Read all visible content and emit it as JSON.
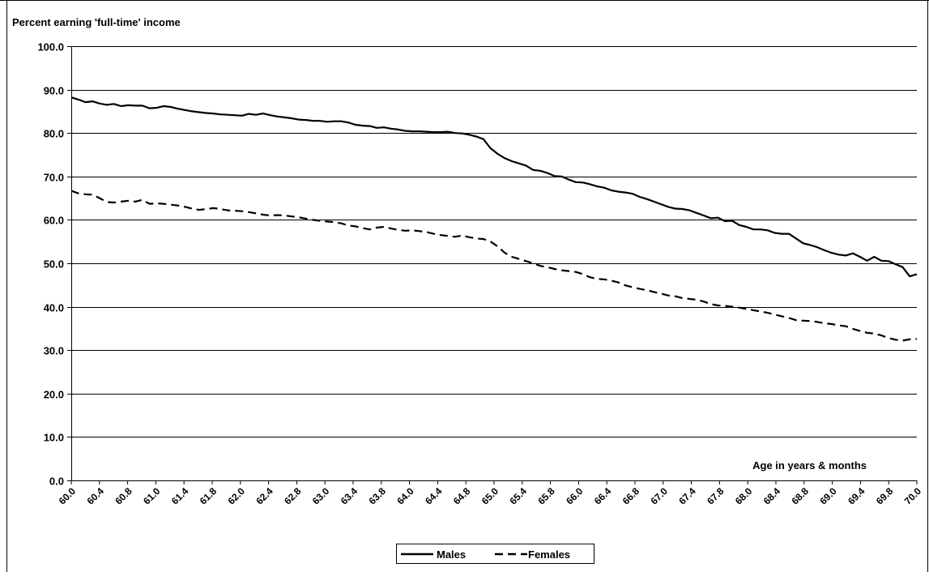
{
  "chart_data": {
    "type": "line",
    "ylabel": "Percent earning 'full-time' income",
    "xlabel": "Age in years & months",
    "ylim": [
      0,
      100
    ],
    "y_ticks": [
      "0.0",
      "10.0",
      "20.0",
      "30.0",
      "40.0",
      "50.0",
      "60.0",
      "70.0",
      "80.0",
      "90.0",
      "100.0"
    ],
    "x_tick_labels": [
      "60.0",
      "60.4",
      "60.8",
      "61.0",
      "61.4",
      "61.8",
      "62.0",
      "62.4",
      "62.8",
      "63.0",
      "63.4",
      "63.8",
      "64.0",
      "64.4",
      "64.8",
      "65.0",
      "65.4",
      "65.8",
      "66.0",
      "66.4",
      "66.8",
      "67.0",
      "67.4",
      "67.8",
      "68.0",
      "68.4",
      "68.8",
      "69.0",
      "69.4",
      "69.8",
      "70.0"
    ],
    "grid": "horizontal",
    "legend_position": "bottom",
    "series": [
      {
        "name": "Males",
        "style": "solid",
        "values": [
          88.2,
          87.7,
          87.1,
          87.3,
          86.8,
          86.5,
          86.7,
          86.2,
          86.4,
          86.3,
          86.3,
          85.7,
          85.8,
          86.2,
          86.0,
          85.6,
          85.3,
          85.0,
          84.8,
          84.6,
          84.5,
          84.3,
          84.2,
          84.1,
          84.0,
          84.4,
          84.2,
          84.5,
          84.1,
          83.8,
          83.6,
          83.4,
          83.1,
          83.0,
          82.8,
          82.8,
          82.6,
          82.7,
          82.7,
          82.4,
          81.9,
          81.7,
          81.6,
          81.2,
          81.3,
          81.0,
          80.8,
          80.5,
          80.4,
          80.4,
          80.3,
          80.2,
          80.2,
          80.3,
          80.0,
          79.9,
          79.6,
          79.2,
          78.6,
          76.5,
          75.2,
          74.2,
          73.5,
          73.0,
          72.5,
          71.5,
          71.3,
          70.8,
          70.1,
          70.0,
          69.3,
          68.7,
          68.6,
          68.2,
          67.7,
          67.4,
          66.8,
          66.5,
          66.3,
          66.0,
          65.3,
          64.8,
          64.2,
          63.6,
          63.0,
          62.6,
          62.5,
          62.2,
          61.6,
          61.0,
          60.4,
          60.5,
          59.7,
          59.8,
          58.8,
          58.4,
          57.8,
          57.8,
          57.6,
          57.0,
          56.8,
          56.8,
          55.7,
          54.6,
          54.2,
          53.7,
          53.0,
          52.4,
          52.0,
          51.8,
          52.3,
          51.5,
          50.6,
          51.5,
          50.6,
          50.5,
          49.8,
          49.1,
          47.0,
          47.5
        ]
      },
      {
        "name": "Females",
        "style": "dashed",
        "values": [
          66.7,
          66.1,
          65.9,
          65.8,
          65.0,
          64.1,
          64.0,
          64.2,
          64.4,
          64.2,
          64.6,
          63.7,
          63.8,
          63.7,
          63.5,
          63.3,
          63.0,
          62.6,
          62.3,
          62.5,
          62.7,
          62.5,
          62.2,
          62.1,
          62.0,
          61.8,
          61.5,
          61.2,
          61.0,
          61.1,
          61.0,
          60.8,
          60.6,
          60.3,
          60.0,
          59.8,
          59.6,
          59.5,
          59.2,
          58.7,
          58.5,
          58.1,
          57.8,
          58.2,
          58.4,
          58.0,
          57.7,
          57.5,
          57.6,
          57.4,
          57.2,
          56.8,
          56.5,
          56.3,
          56.1,
          56.4,
          56.0,
          55.7,
          55.6,
          55.0,
          53.9,
          52.4,
          51.5,
          51.0,
          50.5,
          50.0,
          49.4,
          49.1,
          48.7,
          48.4,
          48.2,
          48.0,
          47.5,
          46.8,
          46.4,
          46.3,
          46.0,
          45.6,
          44.9,
          44.5,
          44.1,
          43.8,
          43.4,
          43.0,
          42.6,
          42.4,
          42.0,
          41.8,
          41.6,
          41.2,
          40.6,
          40.3,
          40.2,
          40.0,
          39.8,
          39.5,
          39.2,
          38.9,
          38.6,
          38.2,
          37.8,
          37.4,
          36.9,
          36.8,
          36.7,
          36.5,
          36.2,
          36.0,
          35.7,
          35.5,
          34.9,
          34.4,
          34.0,
          33.8,
          33.4,
          32.8,
          32.4,
          32.2,
          32.5,
          32.6
        ]
      }
    ]
  }
}
